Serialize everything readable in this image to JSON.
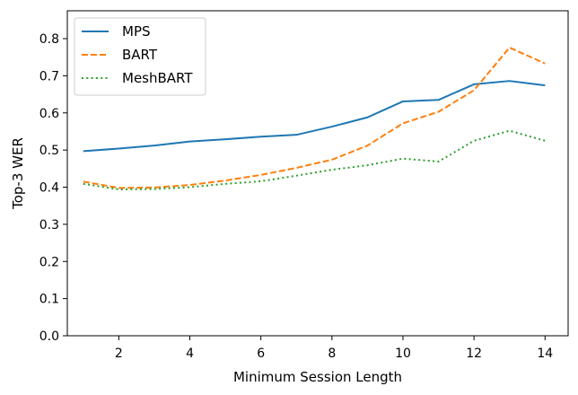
{
  "chart_data": {
    "type": "line",
    "title": "",
    "xlabel": "Minimum Session Length",
    "ylabel": "Top-3 WER",
    "xlim": [
      0.55,
      14.65
    ],
    "ylim": [
      0.0,
      0.875
    ],
    "xticks": [
      2,
      4,
      6,
      8,
      10,
      12,
      14
    ],
    "yticks": [
      0.0,
      0.1,
      0.2,
      0.3,
      0.4,
      0.5,
      0.6,
      0.7,
      0.8
    ],
    "grid": false,
    "legend_position": "top-left",
    "x": [
      1,
      2,
      3,
      4,
      5,
      6,
      7,
      8,
      9,
      10,
      11,
      12,
      13,
      14
    ],
    "series": [
      {
        "name": "MPS",
        "color": "#1f77b4",
        "dash": "solid",
        "values": [
          0.497,
          0.504,
          0.512,
          0.523,
          0.529,
          0.536,
          0.541,
          0.563,
          0.588,
          0.631,
          0.635,
          0.677,
          0.686,
          0.674
        ]
      },
      {
        "name": "BART",
        "color": "#ff7f0e",
        "dash": "dashed",
        "values": [
          0.415,
          0.398,
          0.399,
          0.406,
          0.418,
          0.433,
          0.452,
          0.474,
          0.512,
          0.572,
          0.603,
          0.661,
          0.776,
          0.733
        ]
      },
      {
        "name": "MeshBART",
        "color": "#2ca02c",
        "dash": "dotted",
        "values": [
          0.409,
          0.394,
          0.395,
          0.4,
          0.409,
          0.416,
          0.431,
          0.447,
          0.459,
          0.477,
          0.469,
          0.525,
          0.552,
          0.525
        ]
      }
    ]
  }
}
